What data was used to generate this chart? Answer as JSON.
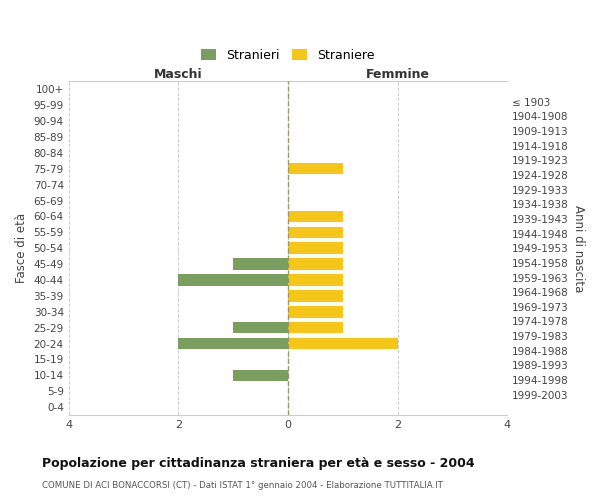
{
  "age_groups_top_to_bottom": [
    "100+",
    "95-99",
    "90-94",
    "85-89",
    "80-84",
    "75-79",
    "70-74",
    "65-69",
    "60-64",
    "55-59",
    "50-54",
    "45-49",
    "40-44",
    "35-39",
    "30-34",
    "25-29",
    "20-24",
    "15-19",
    "10-14",
    "5-9",
    "0-4"
  ],
  "birth_years_top_to_bottom": [
    "≤ 1903",
    "1904-1908",
    "1909-1913",
    "1914-1918",
    "1919-1923",
    "1924-1928",
    "1929-1933",
    "1934-1938",
    "1939-1943",
    "1944-1948",
    "1949-1953",
    "1954-1958",
    "1959-1963",
    "1964-1968",
    "1969-1973",
    "1974-1978",
    "1979-1983",
    "1984-1988",
    "1989-1993",
    "1994-1998",
    "1999-2003"
  ],
  "males_top_to_bottom": [
    0,
    0,
    0,
    0,
    0,
    0,
    0,
    0,
    0,
    0,
    0,
    -1,
    -2,
    0,
    0,
    -1,
    -2,
    0,
    -1,
    0,
    0
  ],
  "females_top_to_bottom": [
    0,
    0,
    0,
    0,
    0,
    1,
    0,
    0,
    1,
    1,
    1,
    1,
    1,
    1,
    1,
    1,
    2,
    0,
    0,
    0,
    0
  ],
  "male_color": "#7a9e5f",
  "female_color": "#f5c518",
  "grid_color": "#cccccc",
  "center_line_color": "#999966",
  "title": "Popolazione per cittadinanza straniera per età e sesso - 2004",
  "subtitle": "COMUNE DI ACI BONACCORSI (CT) - Dati ISTAT 1° gennaio 2004 - Elaborazione TUTTITALIA.IT",
  "label_maschi": "Maschi",
  "label_femmine": "Femmine",
  "ylabel_left": "Fasce di età",
  "ylabel_right": "Anni di nascita",
  "legend_male": "Stranieri",
  "legend_female": "Straniere",
  "xlim": [
    -4,
    4
  ],
  "xticks": [
    -4,
    -2,
    0,
    2,
    4
  ],
  "xticklabels": [
    "4",
    "2",
    "0",
    "2",
    "4"
  ]
}
